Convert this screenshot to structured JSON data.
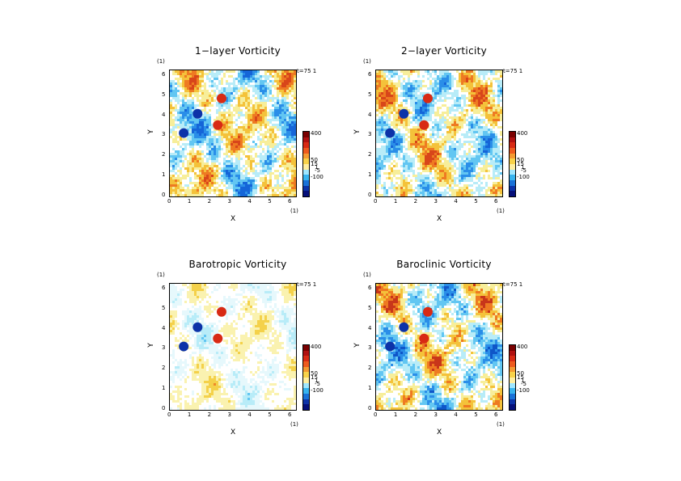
{
  "common": {
    "xlabel": "X",
    "ylabel": "Y",
    "xunit": "(1)",
    "yunit": "(1)",
    "time_label": "t=75 1",
    "xticks": [
      "0",
      "1",
      "2",
      "3",
      "4",
      "5",
      "6"
    ],
    "yticks": [
      "0",
      "1",
      "2",
      "3",
      "4",
      "5",
      "6"
    ],
    "colorbar_labels": [
      "400",
      "50",
      "15",
      "1",
      "-5",
      "-100"
    ],
    "colorbar_colors": [
      "#7a0000",
      "#b01010",
      "#d82a14",
      "#ee5a1e",
      "#f49a32",
      "#f8d24a",
      "#ffeea0",
      "#9fe6ff",
      "#38b4ef",
      "#1a72d8",
      "#0d33a8",
      "#06107a"
    ]
  },
  "chart_data": [
    {
      "type": "heatmap",
      "title": "1−layer Vorticity",
      "xlim": [
        0,
        6.28
      ],
      "ylim": [
        0,
        6.28
      ]
    },
    {
      "type": "heatmap",
      "title": "2−layer Vorticity",
      "xlim": [
        0,
        6.28
      ],
      "ylim": [
        0,
        6.28
      ]
    },
    {
      "type": "heatmap",
      "title": "Barotropic Vorticity",
      "xlim": [
        0,
        6.28
      ],
      "ylim": [
        0,
        6.28
      ]
    },
    {
      "type": "heatmap",
      "title": "Baroclinic Vorticity",
      "xlim": [
        0,
        6.28
      ],
      "ylim": [
        0,
        6.28
      ]
    }
  ]
}
